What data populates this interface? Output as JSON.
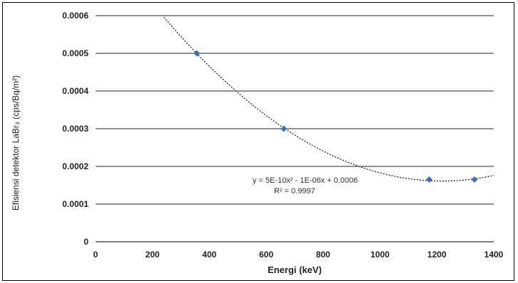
{
  "chart_data": {
    "type": "scatter",
    "title": "",
    "xlabel": "Energi (keV)",
    "ylabel": "Efisiensi detektor LaBr₃ (cps/Bq/m²)",
    "xlim": [
      0,
      1400
    ],
    "ylim": [
      0,
      0.0006
    ],
    "x_ticks": [
      "0",
      "200",
      "400",
      "600",
      "800",
      "1000",
      "1200",
      "1400"
    ],
    "y_ticks": [
      "0",
      "0.0001",
      "0.0002",
      "0.0003",
      "0.0004",
      "0.0005",
      "0.0006"
    ],
    "grid": "horizontal",
    "series": [
      {
        "color": "#3d6fb5",
        "points": [
          {
            "x": 356,
            "y": 0.0005
          },
          {
            "x": 662,
            "y": 0.0003
          },
          {
            "x": 1173,
            "y": 0.000165
          },
          {
            "x": 1332,
            "y": 0.000165
          }
        ]
      }
    ],
    "trendline": {
      "type": "polynomial",
      "style": "dotted",
      "equation": "y = 5E-10x² - 1E-06x + 0.0006",
      "r2_label": "R² = 0.9997"
    }
  }
}
